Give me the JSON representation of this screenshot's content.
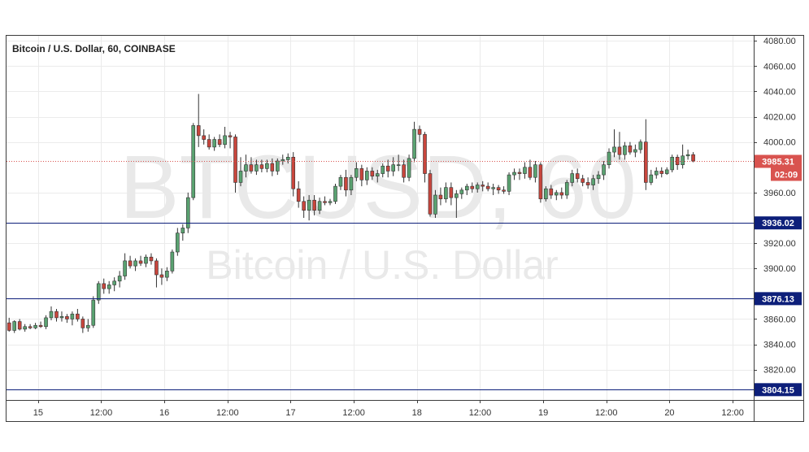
{
  "chart_data": {
    "type": "candlestick",
    "title": "Bitcoin / U.S. Dollar, 60, COINBASE",
    "watermark": {
      "symbol": "BTCUSD, 60",
      "description": "Bitcoin / U.S. Dollar"
    },
    "ylim": [
      3796,
      4084
    ],
    "y_ticks": [
      4080,
      4060,
      4040,
      4020,
      4000,
      3960,
      3920,
      3900,
      3860,
      3840,
      3820
    ],
    "y_tick_labels": [
      "4080.00",
      "4060.00",
      "4040.00",
      "4020.00",
      "4000.00",
      "3960.00",
      "3920.00",
      "3900.00",
      "3860.00",
      "3840.00",
      "3820.00"
    ],
    "x_ticks": [
      {
        "label": "15",
        "pos": 5.5
      },
      {
        "label": "12:00",
        "pos": 17.5
      },
      {
        "label": "16",
        "pos": 29.5
      },
      {
        "label": "12:00",
        "pos": 41.5
      },
      {
        "label": "17",
        "pos": 53.5
      },
      {
        "label": "12:00",
        "pos": 65.5
      },
      {
        "label": "18",
        "pos": 77.5
      },
      {
        "label": "12:00",
        "pos": 89.5
      },
      {
        "label": "19",
        "pos": 101.5
      },
      {
        "label": "12:00",
        "pos": 113.5
      },
      {
        "label": "20",
        "pos": 125.5
      },
      {
        "label": "12:00",
        "pos": 137.5
      }
    ],
    "x_slots": 142,
    "horizontal_lines": [
      {
        "value": 3936.02,
        "label": "3936.02",
        "color": "#0d1f7a"
      },
      {
        "value": 3876.13,
        "label": "3876.13",
        "color": "#0d1f7a"
      },
      {
        "value": 3804.15,
        "label": "3804.15",
        "color": "#0d1f7a"
      }
    ],
    "last_price": {
      "value": 3985.31,
      "label": "3985.31",
      "countdown": "02:09",
      "color": "#d9534f"
    },
    "colors": {
      "up": "#5aa271",
      "down": "#c8463d",
      "wick": "#333333"
    },
    "candles": [
      [
        3857,
        3861,
        3850,
        3851
      ],
      [
        3851,
        3859,
        3849,
        3858
      ],
      [
        3858,
        3860,
        3851,
        3852
      ],
      [
        3852,
        3856,
        3850,
        3854
      ],
      [
        3854,
        3856,
        3852,
        3853
      ],
      [
        3853,
        3857,
        3852,
        3855
      ],
      [
        3855,
        3858,
        3853,
        3854
      ],
      [
        3854,
        3863,
        3852,
        3861
      ],
      [
        3861,
        3870,
        3859,
        3866
      ],
      [
        3866,
        3868,
        3858,
        3861
      ],
      [
        3861,
        3866,
        3858,
        3862
      ],
      [
        3862,
        3864,
        3857,
        3860
      ],
      [
        3860,
        3866,
        3855,
        3864
      ],
      [
        3864,
        3868,
        3858,
        3860
      ],
      [
        3860,
        3862,
        3849,
        3853
      ],
      [
        3853,
        3860,
        3850,
        3855
      ],
      [
        3855,
        3878,
        3853,
        3875
      ],
      [
        3875,
        3890,
        3872,
        3888
      ],
      [
        3888,
        3892,
        3880,
        3884
      ],
      [
        3884,
        3890,
        3880,
        3887
      ],
      [
        3887,
        3893,
        3882,
        3890
      ],
      [
        3890,
        3898,
        3885,
        3894
      ],
      [
        3894,
        3912,
        3891,
        3906
      ],
      [
        3906,
        3910,
        3900,
        3902
      ],
      [
        3902,
        3908,
        3898,
        3906
      ],
      [
        3906,
        3910,
        3902,
        3904
      ],
      [
        3904,
        3911,
        3901,
        3909
      ],
      [
        3909,
        3912,
        3903,
        3906
      ],
      [
        3906,
        3908,
        3885,
        3895
      ],
      [
        3895,
        3900,
        3887,
        3893
      ],
      [
        3893,
        3901,
        3890,
        3898
      ],
      [
        3898,
        3915,
        3896,
        3913
      ],
      [
        3913,
        3932,
        3910,
        3928
      ],
      [
        3928,
        3935,
        3922,
        3932
      ],
      [
        3932,
        3960,
        3928,
        3956
      ],
      [
        3956,
        4015,
        3954,
        4013
      ],
      [
        4013,
        4038,
        3996,
        4005
      ],
      [
        4005,
        4010,
        3998,
        4002
      ],
      [
        4002,
        4006,
        3994,
        3996
      ],
      [
        3996,
        4004,
        3993,
        4002
      ],
      [
        4002,
        4006,
        3996,
        3998
      ],
      [
        3998,
        4012,
        3995,
        4005
      ],
      [
        4005,
        4008,
        3995,
        4004
      ],
      [
        4004,
        4006,
        3960,
        3968
      ],
      [
        3968,
        3988,
        3965,
        3977
      ],
      [
        3977,
        3990,
        3972,
        3982
      ],
      [
        3982,
        3988,
        3975,
        3977
      ],
      [
        3977,
        3986,
        3974,
        3982
      ],
      [
        3982,
        3986,
        3976,
        3979
      ],
      [
        3979,
        3986,
        3976,
        3983
      ],
      [
        3983,
        3987,
        3973,
        3977
      ],
      [
        3977,
        3987,
        3974,
        3985
      ],
      [
        3985,
        3990,
        3982,
        3986
      ],
      [
        3986,
        3991,
        3983,
        3988
      ],
      [
        3988,
        3992,
        3957,
        3963
      ],
      [
        3963,
        3969,
        3948,
        3953
      ],
      [
        3953,
        3957,
        3940,
        3946
      ],
      [
        3946,
        3958,
        3938,
        3954
      ],
      [
        3954,
        3958,
        3942,
        3946
      ],
      [
        3946,
        3956,
        3943,
        3953
      ],
      [
        3953,
        3957,
        3950,
        3952
      ],
      [
        3952,
        3955,
        3950,
        3953
      ],
      [
        3953,
        3967,
        3951,
        3965
      ],
      [
        3965,
        3974,
        3962,
        3972
      ],
      [
        3972,
        3978,
        3957,
        3962
      ],
      [
        3962,
        3974,
        3958,
        3972
      ],
      [
        3972,
        3984,
        3969,
        3979
      ],
      [
        3979,
        3982,
        3965,
        3970
      ],
      [
        3970,
        3980,
        3966,
        3977
      ],
      [
        3977,
        3980,
        3970,
        3973
      ],
      [
        3973,
        3978,
        3968,
        3975
      ],
      [
        3975,
        3983,
        3972,
        3981
      ],
      [
        3981,
        3986,
        3972,
        3977
      ],
      [
        3977,
        3988,
        3973,
        3982
      ],
      [
        3982,
        3990,
        3977,
        3982
      ],
      [
        3982,
        3986,
        3968,
        3972
      ],
      [
        3972,
        3990,
        3969,
        3987
      ],
      [
        3987,
        4016,
        3984,
        4010
      ],
      [
        4010,
        4013,
        4000,
        4006
      ],
      [
        4006,
        4008,
        3968,
        3975
      ],
      [
        3975,
        3978,
        3941,
        3943
      ],
      [
        3943,
        3962,
        3940,
        3958
      ],
      [
        3958,
        3964,
        3950,
        3955
      ],
      [
        3955,
        3968,
        3952,
        3964
      ],
      [
        3964,
        3968,
        3950,
        3956
      ],
      [
        3956,
        3962,
        3940,
        3959
      ],
      [
        3959,
        3964,
        3955,
        3962
      ],
      [
        3962,
        3967,
        3958,
        3965
      ],
      [
        3965,
        3968,
        3960,
        3963
      ],
      [
        3963,
        3968,
        3960,
        3966
      ],
      [
        3966,
        3969,
        3961,
        3965
      ],
      [
        3965,
        3968,
        3961,
        3963
      ],
      [
        3963,
        3967,
        3958,
        3964
      ],
      [
        3964,
        3966,
        3959,
        3962
      ],
      [
        3962,
        3965,
        3959,
        3961
      ],
      [
        3961,
        3976,
        3958,
        3974
      ],
      [
        3974,
        3979,
        3970,
        3976
      ],
      [
        3976,
        3979,
        3970,
        3975
      ],
      [
        3975,
        3984,
        3971,
        3980
      ],
      [
        3980,
        3986,
        3970,
        3972
      ],
      [
        3972,
        3985,
        3968,
        3982
      ],
      [
        3982,
        3984,
        3952,
        3955
      ],
      [
        3955,
        3965,
        3953,
        3963
      ],
      [
        3963,
        3966,
        3955,
        3958
      ],
      [
        3958,
        3962,
        3954,
        3960
      ],
      [
        3960,
        3964,
        3955,
        3958
      ],
      [
        3958,
        3970,
        3955,
        3968
      ],
      [
        3968,
        3978,
        3965,
        3975
      ],
      [
        3975,
        3979,
        3968,
        3971
      ],
      [
        3971,
        3974,
        3965,
        3968
      ],
      [
        3968,
        3972,
        3963,
        3966
      ],
      [
        3966,
        3974,
        3962,
        3971
      ],
      [
        3971,
        3977,
        3967,
        3974
      ],
      [
        3974,
        3985,
        3970,
        3982
      ],
      [
        3982,
        3995,
        3979,
        3992
      ],
      [
        3992,
        4010,
        3988,
        3996
      ],
      [
        3996,
        4008,
        3986,
        3990
      ],
      [
        3990,
        4000,
        3986,
        3997
      ],
      [
        3997,
        4000,
        3990,
        3992
      ],
      [
        3992,
        3998,
        3988,
        3994
      ],
      [
        3994,
        4002,
        3991,
        4000
      ],
      [
        4000,
        4018,
        3962,
        3968
      ],
      [
        3968,
        3978,
        3966,
        3974
      ],
      [
        3974,
        3980,
        3971,
        3977
      ],
      [
        3977,
        3980,
        3972,
        3975
      ],
      [
        3975,
        3980,
        3974,
        3978
      ],
      [
        3978,
        3990,
        3976,
        3988
      ],
      [
        3988,
        3990,
        3978,
        3982
      ],
      [
        3982,
        3998,
        3979,
        3989
      ],
      [
        3989,
        3994,
        3986,
        3990
      ],
      [
        3990,
        3992,
        3984,
        3985
      ]
    ]
  }
}
